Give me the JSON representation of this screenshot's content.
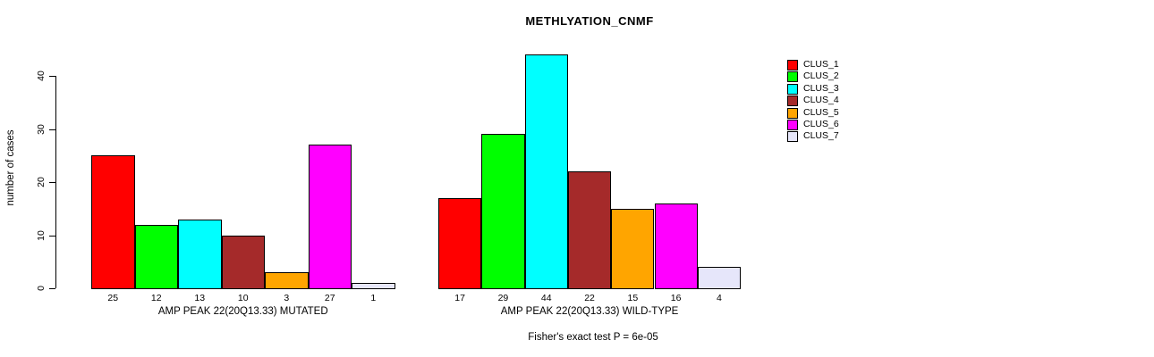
{
  "title": "METHLYATION_CNMF",
  "chart_data": {
    "type": "bar",
    "title": "METHLYATION_CNMF",
    "ylabel": "number of cases",
    "xlabel": "",
    "ylim": [
      0,
      44
    ],
    "y_ticks": [
      0,
      10,
      20,
      30,
      40
    ],
    "grid": false,
    "legend_position": "right",
    "legend": [
      "CLUS_1",
      "CLUS_2",
      "CLUS_3",
      "CLUS_4",
      "CLUS_5",
      "CLUS_6",
      "CLUS_7"
    ],
    "colors": [
      "#FF0000",
      "#00FF00",
      "#00FFFF",
      "#A52A2A",
      "#FFA500",
      "#FF00FF",
      "#E6E6FA"
    ],
    "groups": [
      {
        "label": "AMP PEAK 22(20Q13.33) MUTATED",
        "values": [
          25,
          12,
          13,
          10,
          3,
          27,
          1
        ]
      },
      {
        "label": "AMP PEAK 22(20Q13.33) WILD-TYPE",
        "values": [
          17,
          29,
          44,
          22,
          15,
          16,
          4
        ]
      }
    ],
    "annotation": "Fisher's exact test P = 6e-05"
  }
}
